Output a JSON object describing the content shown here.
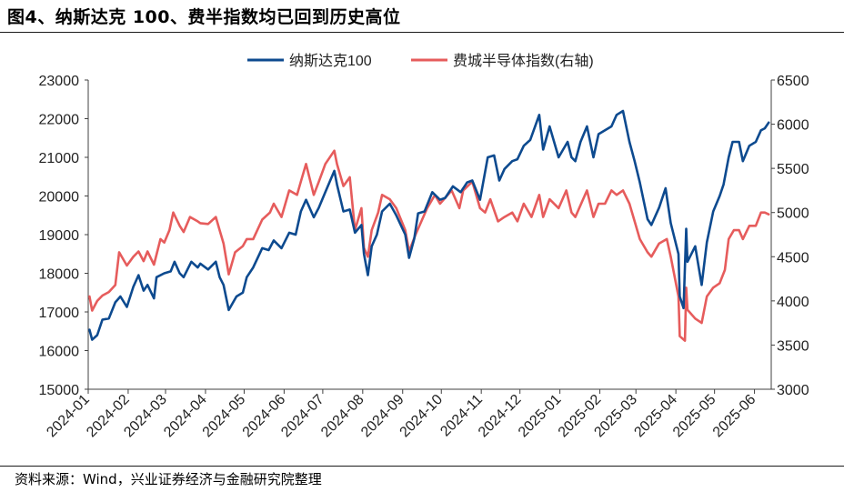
{
  "title": "图4、纳斯达克 100、费半指数均已回到历史高位",
  "source": "资料来源：Wind，兴业证券经济与金融研究院整理",
  "chart_data": {
    "type": "line",
    "legend_placement": "top-center",
    "grid": false,
    "x_ticks": [
      "2024-01",
      "2024-02",
      "2024-03",
      "2024-04",
      "2024-05",
      "2024-06",
      "2024-07",
      "2024-08",
      "2024-09",
      "2024-10",
      "2024-11",
      "2024-12",
      "2025-01",
      "2025-02",
      "2025-03",
      "2025-04",
      "2025-05",
      "2025-06"
    ],
    "y_left": {
      "ylim": [
        15000,
        23000
      ],
      "ticks": [
        "15000",
        "16000",
        "17000",
        "18000",
        "19000",
        "20000",
        "21000",
        "22000",
        "23000"
      ]
    },
    "y_right": {
      "ylim": [
        3000,
        6500
      ],
      "ticks": [
        "3000",
        "3500",
        "4000",
        "4500",
        "5000",
        "5500",
        "6000",
        "6500"
      ]
    },
    "series": [
      {
        "name": "纳斯达克100",
        "color": "#0d4a8f",
        "axis": "left",
        "points": [
          [
            "2024-01-02",
            16540
          ],
          [
            "2024-01-04",
            16280
          ],
          [
            "2024-01-08",
            16400
          ],
          [
            "2024-01-12",
            16800
          ],
          [
            "2024-01-17",
            16830
          ],
          [
            "2024-01-22",
            17250
          ],
          [
            "2024-01-26",
            17400
          ],
          [
            "2024-01-31",
            17130
          ],
          [
            "2024-02-05",
            17650
          ],
          [
            "2024-02-09",
            17950
          ],
          [
            "2024-02-13",
            17550
          ],
          [
            "2024-02-16",
            17700
          ],
          [
            "2024-02-21",
            17350
          ],
          [
            "2024-02-23",
            17900
          ],
          [
            "2024-02-29",
            18000
          ],
          [
            "2024-03-05",
            18050
          ],
          [
            "2024-03-08",
            18300
          ],
          [
            "2024-03-12",
            18000
          ],
          [
            "2024-03-15",
            17900
          ],
          [
            "2024-03-21",
            18300
          ],
          [
            "2024-03-26",
            18150
          ],
          [
            "2024-03-28",
            18250
          ],
          [
            "2024-04-03",
            18100
          ],
          [
            "2024-04-09",
            18300
          ],
          [
            "2024-04-12",
            17900
          ],
          [
            "2024-04-15",
            17700
          ],
          [
            "2024-04-19",
            17050
          ],
          [
            "2024-04-25",
            17400
          ],
          [
            "2024-04-30",
            17500
          ],
          [
            "2024-05-03",
            17900
          ],
          [
            "2024-05-08",
            18150
          ],
          [
            "2024-05-15",
            18650
          ],
          [
            "2024-05-20",
            18600
          ],
          [
            "2024-05-24",
            18850
          ],
          [
            "2024-05-30",
            18650
          ],
          [
            "2024-06-05",
            19050
          ],
          [
            "2024-06-10",
            19000
          ],
          [
            "2024-06-14",
            19600
          ],
          [
            "2024-06-18",
            19900
          ],
          [
            "2024-06-24",
            19450
          ],
          [
            "2024-06-28",
            19700
          ],
          [
            "2024-07-03",
            20100
          ],
          [
            "2024-07-10",
            20650
          ],
          [
            "2024-07-12",
            20300
          ],
          [
            "2024-07-17",
            19600
          ],
          [
            "2024-07-22",
            19650
          ],
          [
            "2024-07-26",
            19050
          ],
          [
            "2024-07-31",
            19250
          ],
          [
            "2024-08-02",
            18500
          ],
          [
            "2024-08-05",
            17950
          ],
          [
            "2024-08-08",
            18700
          ],
          [
            "2024-08-12",
            19000
          ],
          [
            "2024-08-16",
            19600
          ],
          [
            "2024-08-22",
            19800
          ],
          [
            "2024-08-27",
            19500
          ],
          [
            "2024-09-03",
            19000
          ],
          [
            "2024-09-06",
            18400
          ],
          [
            "2024-09-10",
            18900
          ],
          [
            "2024-09-13",
            19550
          ],
          [
            "2024-09-18",
            19600
          ],
          [
            "2024-09-24",
            20100
          ],
          [
            "2024-09-30",
            19900
          ],
          [
            "2024-10-04",
            19950
          ],
          [
            "2024-10-10",
            20250
          ],
          [
            "2024-10-16",
            20100
          ],
          [
            "2024-10-21",
            20350
          ],
          [
            "2024-10-25",
            20400
          ],
          [
            "2024-10-31",
            19900
          ],
          [
            "2024-11-06",
            21000
          ],
          [
            "2024-11-11",
            21050
          ],
          [
            "2024-11-15",
            20400
          ],
          [
            "2024-11-19",
            20700
          ],
          [
            "2024-11-25",
            20900
          ],
          [
            "2024-11-29",
            20950
          ],
          [
            "2024-12-04",
            21300
          ],
          [
            "2024-12-09",
            21450
          ],
          [
            "2024-12-16",
            22100
          ],
          [
            "2024-12-19",
            21200
          ],
          [
            "2024-12-24",
            21800
          ],
          [
            "2024-12-31",
            21000
          ],
          [
            "2025-01-07",
            21400
          ],
          [
            "2025-01-10",
            21000
          ],
          [
            "2025-01-13",
            20900
          ],
          [
            "2025-01-17",
            21400
          ],
          [
            "2025-01-22",
            21800
          ],
          [
            "2025-01-27",
            21000
          ],
          [
            "2025-01-31",
            21600
          ],
          [
            "2025-02-05",
            21700
          ],
          [
            "2025-02-10",
            21800
          ],
          [
            "2025-02-14",
            22100
          ],
          [
            "2025-02-19",
            22200
          ],
          [
            "2025-02-24",
            21400
          ],
          [
            "2025-02-28",
            20900
          ],
          [
            "2025-03-04",
            20350
          ],
          [
            "2025-03-10",
            19400
          ],
          [
            "2025-03-13",
            19250
          ],
          [
            "2025-03-19",
            19700
          ],
          [
            "2025-03-24",
            20200
          ],
          [
            "2025-03-28",
            19300
          ],
          [
            "2025-04-03",
            18500
          ],
          [
            "2025-04-04",
            17400
          ],
          [
            "2025-04-07",
            17100
          ],
          [
            "2025-04-09",
            19150
          ],
          [
            "2025-04-10",
            18300
          ],
          [
            "2025-04-16",
            18700
          ],
          [
            "2025-04-21",
            17700
          ],
          [
            "2025-04-25",
            18800
          ],
          [
            "2025-04-30",
            19600
          ],
          [
            "2025-05-05",
            20000
          ],
          [
            "2025-05-08",
            20300
          ],
          [
            "2025-05-12",
            21000
          ],
          [
            "2025-05-15",
            21400
          ],
          [
            "2025-05-20",
            21400
          ],
          [
            "2025-05-23",
            20900
          ],
          [
            "2025-05-28",
            21300
          ],
          [
            "2025-06-02",
            21400
          ],
          [
            "2025-06-06",
            21700
          ],
          [
            "2025-06-09",
            21750
          ],
          [
            "2025-06-12",
            21900
          ]
        ]
      },
      {
        "name": "费城半导体指数(右轴)",
        "color": "#e65c5c",
        "axis": "right",
        "points": [
          [
            "2024-01-02",
            4050
          ],
          [
            "2024-01-04",
            3890
          ],
          [
            "2024-01-08",
            4000
          ],
          [
            "2024-01-12",
            4060
          ],
          [
            "2024-01-17",
            4100
          ],
          [
            "2024-01-22",
            4180
          ],
          [
            "2024-01-25",
            4550
          ],
          [
            "2024-01-31",
            4400
          ],
          [
            "2024-02-05",
            4500
          ],
          [
            "2024-02-09",
            4560
          ],
          [
            "2024-02-13",
            4450
          ],
          [
            "2024-02-16",
            4560
          ],
          [
            "2024-02-21",
            4410
          ],
          [
            "2024-02-26",
            4700
          ],
          [
            "2024-02-29",
            4660
          ],
          [
            "2024-03-04",
            4800
          ],
          [
            "2024-03-07",
            5000
          ],
          [
            "2024-03-12",
            4850
          ],
          [
            "2024-03-15",
            4780
          ],
          [
            "2024-03-20",
            4950
          ],
          [
            "2024-03-26",
            4900
          ],
          [
            "2024-03-28",
            4880
          ],
          [
            "2024-04-03",
            4870
          ],
          [
            "2024-04-09",
            4950
          ],
          [
            "2024-04-12",
            4800
          ],
          [
            "2024-04-15",
            4650
          ],
          [
            "2024-04-19",
            4300
          ],
          [
            "2024-04-24",
            4550
          ],
          [
            "2024-04-30",
            4620
          ],
          [
            "2024-05-03",
            4700
          ],
          [
            "2024-05-08",
            4700
          ],
          [
            "2024-05-15",
            4920
          ],
          [
            "2024-05-21",
            5000
          ],
          [
            "2024-05-24",
            5100
          ],
          [
            "2024-05-30",
            4950
          ],
          [
            "2024-06-05",
            5250
          ],
          [
            "2024-06-11",
            5200
          ],
          [
            "2024-06-14",
            5350
          ],
          [
            "2024-06-18",
            5550
          ],
          [
            "2024-06-24",
            5200
          ],
          [
            "2024-06-28",
            5350
          ],
          [
            "2024-07-03",
            5550
          ],
          [
            "2024-07-10",
            5700
          ],
          [
            "2024-07-12",
            5550
          ],
          [
            "2024-07-17",
            5300
          ],
          [
            "2024-07-22",
            5400
          ],
          [
            "2024-07-26",
            4800
          ],
          [
            "2024-07-31",
            5050
          ],
          [
            "2024-08-02",
            4600
          ],
          [
            "2024-08-05",
            4500
          ],
          [
            "2024-08-08",
            4800
          ],
          [
            "2024-08-13",
            5000
          ],
          [
            "2024-08-16",
            5200
          ],
          [
            "2024-08-22",
            5150
          ],
          [
            "2024-08-27",
            5050
          ],
          [
            "2024-09-03",
            4800
          ],
          [
            "2024-09-06",
            4560
          ],
          [
            "2024-09-11",
            4750
          ],
          [
            "2024-09-17",
            4950
          ],
          [
            "2024-09-20",
            5050
          ],
          [
            "2024-09-26",
            5200
          ],
          [
            "2024-09-30",
            5100
          ],
          [
            "2024-10-03",
            5150
          ],
          [
            "2024-10-09",
            5250
          ],
          [
            "2024-10-15",
            5050
          ],
          [
            "2024-10-18",
            5250
          ],
          [
            "2024-10-25",
            5350
          ],
          [
            "2024-10-31",
            5050
          ],
          [
            "2024-11-04",
            5000
          ],
          [
            "2024-11-08",
            5150
          ],
          [
            "2024-11-14",
            4900
          ],
          [
            "2024-11-19",
            4950
          ],
          [
            "2024-11-25",
            5000
          ],
          [
            "2024-11-29",
            4900
          ],
          [
            "2024-12-04",
            5100
          ],
          [
            "2024-12-10",
            4950
          ],
          [
            "2024-12-16",
            5200
          ],
          [
            "2024-12-19",
            4950
          ],
          [
            "2024-12-24",
            5150
          ],
          [
            "2024-12-31",
            5050
          ],
          [
            "2025-01-06",
            5250
          ],
          [
            "2025-01-10",
            5000
          ],
          [
            "2025-01-13",
            4950
          ],
          [
            "2025-01-22",
            5250
          ],
          [
            "2025-01-27",
            4950
          ],
          [
            "2025-01-31",
            5100
          ],
          [
            "2025-02-05",
            5100
          ],
          [
            "2025-02-10",
            5250
          ],
          [
            "2025-02-14",
            5200
          ],
          [
            "2025-02-19",
            5250
          ],
          [
            "2025-02-24",
            5100
          ],
          [
            "2025-02-28",
            4900
          ],
          [
            "2025-03-04",
            4700
          ],
          [
            "2025-03-10",
            4550
          ],
          [
            "2025-03-13",
            4500
          ],
          [
            "2025-03-19",
            4650
          ],
          [
            "2025-03-25",
            4700
          ],
          [
            "2025-03-28",
            4500
          ],
          [
            "2025-04-03",
            4050
          ],
          [
            "2025-04-04",
            3600
          ],
          [
            "2025-04-08",
            3550
          ],
          [
            "2025-04-09",
            4150
          ],
          [
            "2025-04-10",
            3900
          ],
          [
            "2025-04-16",
            3800
          ],
          [
            "2025-04-21",
            3750
          ],
          [
            "2025-04-25",
            4050
          ],
          [
            "2025-04-30",
            4150
          ],
          [
            "2025-05-05",
            4200
          ],
          [
            "2025-05-09",
            4350
          ],
          [
            "2025-05-12",
            4700
          ],
          [
            "2025-05-16",
            4800
          ],
          [
            "2025-05-20",
            4800
          ],
          [
            "2025-05-23",
            4700
          ],
          [
            "2025-05-28",
            4850
          ],
          [
            "2025-06-02",
            4850
          ],
          [
            "2025-06-06",
            5000
          ],
          [
            "2025-06-09",
            5000
          ],
          [
            "2025-06-12",
            4980
          ]
        ]
      }
    ]
  }
}
